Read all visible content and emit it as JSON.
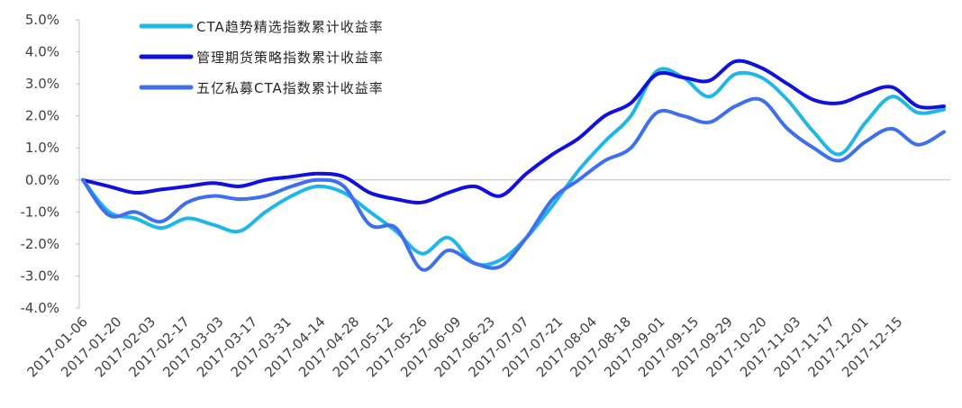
{
  "chart_data": {
    "type": "line",
    "title": "",
    "xlabel": "",
    "ylabel": "",
    "ylim": [
      -4.0,
      5.0
    ],
    "y_tick_labels": [
      "5.0%",
      "4.0%",
      "3.0%",
      "2.0%",
      "1.0%",
      "0.0%",
      "-1.0%",
      "-2.0%",
      "-3.0%",
      "-4.0%"
    ],
    "x_tick_labels": [
      "2017-01-06",
      "2017-01-20",
      "2017-02-03",
      "2017-02-17",
      "2017-03-03",
      "2017-03-17",
      "2017-03-31",
      "2017-04-14",
      "2017-04-28",
      "2017-05-12",
      "2017-05-26",
      "2017-06-09",
      "2017-06-23",
      "2017-07-07",
      "2017-07-21",
      "2017-08-04",
      "2017-08-18",
      "2017-09-01",
      "2017-09-15",
      "2017-09-29",
      "2017-10-20",
      "2017-11-03",
      "2017-11-17",
      "2017-12-01",
      "2017-12-15"
    ],
    "legend_position": "top-left",
    "grid": false,
    "series": [
      {
        "name": "CTA趋势精选指数累计收益率",
        "color": "#1FB6E8",
        "values": [
          0.0,
          -1.0,
          -1.2,
          -1.5,
          -1.2,
          -1.4,
          -1.6,
          -1.0,
          -0.5,
          -0.2,
          -0.4,
          -1.0,
          -1.6,
          -2.3,
          -1.8,
          -2.6,
          -2.5,
          -1.8,
          -0.8,
          0.3,
          1.2,
          2.0,
          3.4,
          3.2,
          2.6,
          3.3,
          3.2,
          2.5,
          1.5,
          0.8,
          1.8,
          2.6,
          2.1,
          2.2
        ]
      },
      {
        "name": "管理期货策略指数累计收益率",
        "color": "#1010E0",
        "values": [
          0.0,
          -0.2,
          -0.4,
          -0.3,
          -0.2,
          -0.1,
          -0.2,
          0.0,
          0.1,
          0.2,
          0.1,
          -0.4,
          -0.6,
          -0.7,
          -0.4,
          -0.2,
          -0.5,
          0.2,
          0.8,
          1.3,
          2.0,
          2.4,
          3.3,
          3.2,
          3.1,
          3.7,
          3.5,
          3.0,
          2.5,
          2.4,
          2.7,
          2.9,
          2.3,
          2.3
        ]
      },
      {
        "name": "五亿私募CTA指数累计收益率",
        "color": "#3E6FEF",
        "values": [
          0.0,
          -1.1,
          -1.0,
          -1.3,
          -0.7,
          -0.5,
          -0.6,
          -0.5,
          -0.2,
          0.0,
          -0.2,
          -1.4,
          -1.5,
          -2.8,
          -2.2,
          -2.6,
          -2.7,
          -1.8,
          -0.6,
          0.0,
          0.6,
          1.0,
          2.1,
          2.0,
          1.8,
          2.3,
          2.5,
          1.6,
          1.0,
          0.6,
          1.2,
          1.6,
          1.1,
          1.5
        ]
      }
    ]
  }
}
